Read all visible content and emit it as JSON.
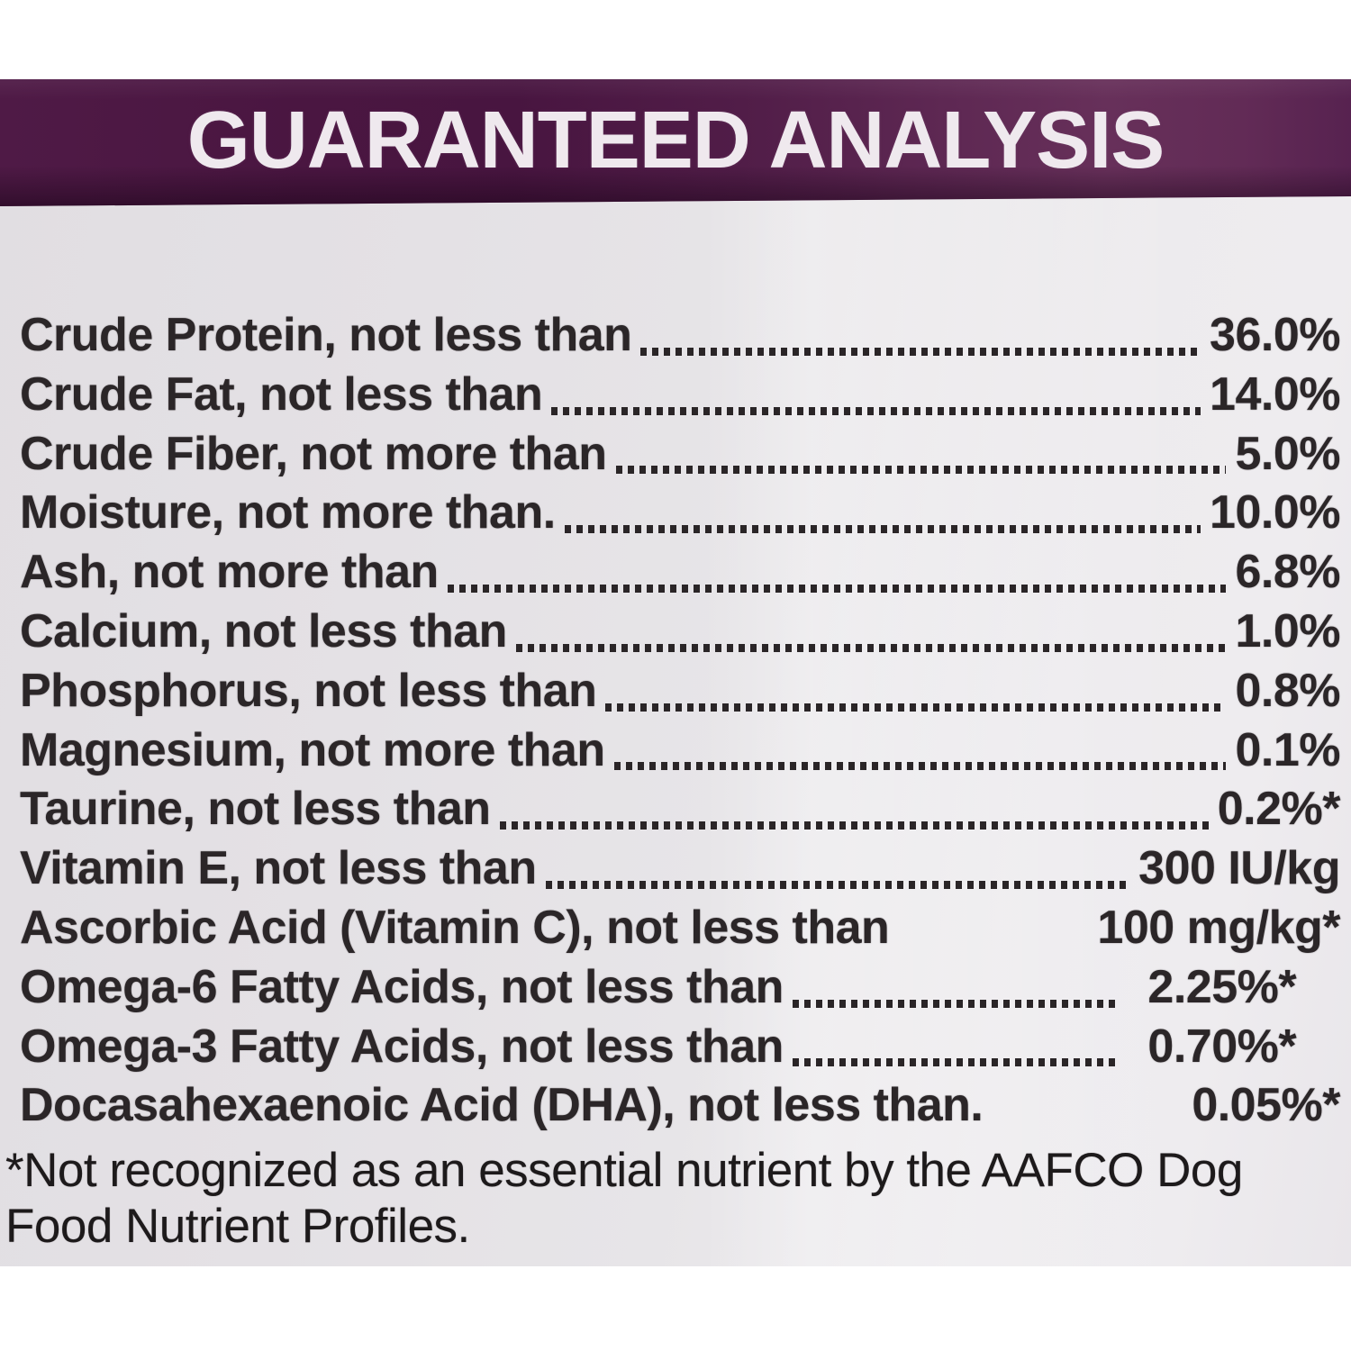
{
  "title": "GUARANTEED ANALYSIS",
  "colors": {
    "banner_purple": "#4a1641",
    "banner_purple_light": "#67305a",
    "label_background": "#e7e5e8",
    "text": "#2b2628"
  },
  "rows": [
    {
      "label": "Crude Protein, not less than",
      "value": "36.0%",
      "leader": "full"
    },
    {
      "label": "Crude Fat, not less than",
      "value": "14.0%",
      "leader": "full"
    },
    {
      "label": "Crude Fiber, not more than",
      "value": "5.0%",
      "leader": "full"
    },
    {
      "label": "Moisture, not more than.",
      "value": "10.0%",
      "leader": "full"
    },
    {
      "label": "Ash, not more than",
      "value": "6.8%",
      "leader": "full"
    },
    {
      "label": "Calcium, not less than",
      "value": "1.0%",
      "leader": "full"
    },
    {
      "label": "Phosphorus, not less than",
      "value": "0.8%",
      "leader": "full"
    },
    {
      "label": "Magnesium, not more than",
      "value": "0.1%",
      "leader": "full"
    },
    {
      "label": "Taurine, not less than",
      "value": "0.2%*",
      "leader": "full"
    },
    {
      "label": "Vitamin E, not less than",
      "value": "300 IU/kg",
      "leader": "full"
    },
    {
      "label": "Ascorbic Acid (Vitamin C), not less than",
      "value": "100 mg/kg*",
      "leader": "none"
    },
    {
      "label": "Omega-6 Fatty Acids, not less than",
      "value": "2.25%*",
      "leader": "short"
    },
    {
      "label": "Omega-3 Fatty Acids, not less than",
      "value": "0.70%*",
      "leader": "short"
    },
    {
      "label": "Docasahexaenoic Acid (DHA), not less than.",
      "value": "0.05%*",
      "leader": "none"
    }
  ],
  "footnote": "*Not recognized as an essential nutrient by the AAFCO Dog Food Nutrient Profiles."
}
